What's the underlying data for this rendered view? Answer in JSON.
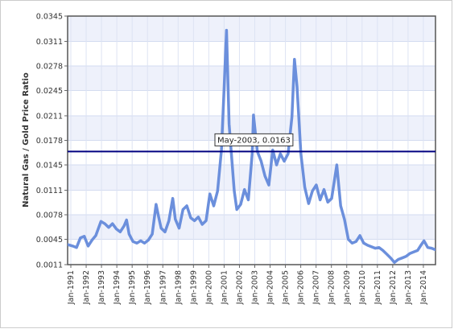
{
  "chart_data": {
    "type": "line",
    "title": "",
    "xlabel": "",
    "ylabel": "Natural Gas / Gold Price Ratio",
    "ylim": [
      0.0011,
      0.0345
    ],
    "y_ticks": [
      "0.0345",
      "0.0311",
      "0.0278",
      "0.0245",
      "0.0211",
      "0.0178",
      "0.0145",
      "0.0111",
      "0.0078",
      "0.0045",
      "0.0011"
    ],
    "x_ticks": [
      "Jan-1991",
      "Jan-1992",
      "Jan-1993",
      "Jan-1994",
      "Jan-1995",
      "Jan-1996",
      "Jan-1997",
      "Jan-1998",
      "Jan-1999",
      "Jan-2000",
      "Jan-2001",
      "Jan-2002",
      "Jan-2003",
      "Jan-2004",
      "Jan-2005",
      "Jan-2006",
      "Jan-2007",
      "Jan-2008",
      "Jan-2009",
      "Jan-2010",
      "Jan-2011",
      "Jan-2012",
      "Jan-2013",
      "Jan-2014"
    ],
    "x_range": [
      "1991-01",
      "2014-12"
    ],
    "grid": true,
    "reference_line": {
      "value": 0.0163,
      "color": "#000080"
    },
    "tooltip": {
      "text": "May-2003, 0.0163"
    },
    "series": [
      {
        "color": "#6b8fdc",
        "points": [
          [
            "1991-01",
            0.0038
          ],
          [
            "1991-05",
            0.0036
          ],
          [
            "1991-08",
            0.0034
          ],
          [
            "1991-11",
            0.0047
          ],
          [
            "1992-02",
            0.0049
          ],
          [
            "1992-05",
            0.0036
          ],
          [
            "1992-08",
            0.0044
          ],
          [
            "1992-11",
            0.005
          ],
          [
            "1993-03",
            0.0069
          ],
          [
            "1993-06",
            0.0066
          ],
          [
            "1993-09",
            0.0061
          ],
          [
            "1993-12",
            0.0066
          ],
          [
            "1994-03",
            0.0059
          ],
          [
            "1994-06",
            0.0055
          ],
          [
            "1994-09",
            0.0063
          ],
          [
            "1994-11",
            0.0071
          ],
          [
            "1995-01",
            0.0052
          ],
          [
            "1995-04",
            0.0042
          ],
          [
            "1995-07",
            0.004
          ],
          [
            "1995-10",
            0.0043
          ],
          [
            "1996-01",
            0.004
          ],
          [
            "1996-04",
            0.0044
          ],
          [
            "1996-07",
            0.0052
          ],
          [
            "1996-10",
            0.0092
          ],
          [
            "1996-12",
            0.0075
          ],
          [
            "1997-02",
            0.006
          ],
          [
            "1997-05",
            0.0055
          ],
          [
            "1997-08",
            0.007
          ],
          [
            "1997-11",
            0.01
          ],
          [
            "1998-01",
            0.0072
          ],
          [
            "1998-04",
            0.006
          ],
          [
            "1998-07",
            0.0085
          ],
          [
            "1998-10",
            0.009
          ],
          [
            "1999-01",
            0.0074
          ],
          [
            "1999-04",
            0.007
          ],
          [
            "1999-07",
            0.0075
          ],
          [
            "1999-10",
            0.0065
          ],
          [
            "2000-01",
            0.007
          ],
          [
            "2000-04",
            0.0106
          ],
          [
            "2000-07",
            0.009
          ],
          [
            "2000-10",
            0.011
          ],
          [
            "2001-01",
            0.0165
          ],
          [
            "2001-03",
            0.0245
          ],
          [
            "2001-05",
            0.0326
          ],
          [
            "2001-07",
            0.02
          ],
          [
            "2001-09",
            0.0155
          ],
          [
            "2001-11",
            0.011
          ],
          [
            "2002-01",
            0.0085
          ],
          [
            "2002-04",
            0.0092
          ],
          [
            "2002-07",
            0.0112
          ],
          [
            "2002-10",
            0.0098
          ],
          [
            "2003-01",
            0.016
          ],
          [
            "2003-02",
            0.0212
          ],
          [
            "2003-05",
            0.0163
          ],
          [
            "2003-08",
            0.015
          ],
          [
            "2003-11",
            0.013
          ],
          [
            "2004-02",
            0.0118
          ],
          [
            "2004-05",
            0.0165
          ],
          [
            "2004-08",
            0.0145
          ],
          [
            "2004-11",
            0.016
          ],
          [
            "2005-02",
            0.015
          ],
          [
            "2005-05",
            0.016
          ],
          [
            "2005-08",
            0.021
          ],
          [
            "2005-10",
            0.0287
          ],
          [
            "2005-12",
            0.025
          ],
          [
            "2006-03",
            0.016
          ],
          [
            "2006-06",
            0.0115
          ],
          [
            "2006-09",
            0.0093
          ],
          [
            "2006-12",
            0.011
          ],
          [
            "2007-03",
            0.0118
          ],
          [
            "2007-06",
            0.0098
          ],
          [
            "2007-09",
            0.0112
          ],
          [
            "2007-12",
            0.0095
          ],
          [
            "2008-03",
            0.01
          ],
          [
            "2008-07",
            0.0145
          ],
          [
            "2008-10",
            0.009
          ],
          [
            "2009-01",
            0.0072
          ],
          [
            "2009-04",
            0.0045
          ],
          [
            "2009-07",
            0.004
          ],
          [
            "2009-10",
            0.0042
          ],
          [
            "2010-01",
            0.005
          ],
          [
            "2010-04",
            0.004
          ],
          [
            "2010-07",
            0.0037
          ],
          [
            "2010-10",
            0.0035
          ],
          [
            "2011-01",
            0.0033
          ],
          [
            "2011-04",
            0.0034
          ],
          [
            "2011-07",
            0.003
          ],
          [
            "2011-10",
            0.0025
          ],
          [
            "2012-01",
            0.002
          ],
          [
            "2012-04",
            0.0014
          ],
          [
            "2012-07",
            0.0018
          ],
          [
            "2012-10",
            0.002
          ],
          [
            "2013-01",
            0.0022
          ],
          [
            "2013-04",
            0.0026
          ],
          [
            "2013-07",
            0.0028
          ],
          [
            "2013-10",
            0.003
          ],
          [
            "2014-01",
            0.0038
          ],
          [
            "2014-03",
            0.0043
          ],
          [
            "2014-06",
            0.0034
          ],
          [
            "2014-09",
            0.0033
          ],
          [
            "2014-12",
            0.0031
          ]
        ]
      }
    ]
  }
}
